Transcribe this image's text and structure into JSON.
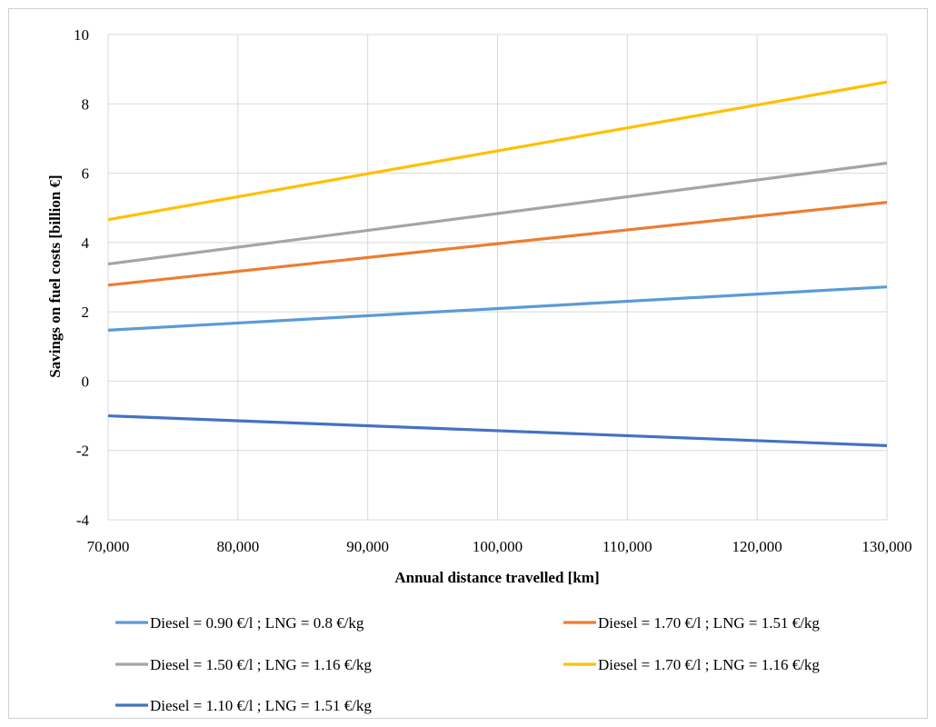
{
  "chart_data": {
    "type": "line",
    "title": "",
    "xlabel": "Annual distance travelled [km]",
    "ylabel": "Savings on fuel costs [billion €]",
    "xlim": [
      70000,
      130000
    ],
    "ylim": [
      -4,
      10
    ],
    "x_ticks": [
      70000,
      80000,
      90000,
      100000,
      110000,
      120000,
      130000
    ],
    "x_tick_labels": [
      "70,000",
      "80,000",
      "90,000",
      "100,000",
      "110,000",
      "120,000",
      "130,000"
    ],
    "y_ticks": [
      -4,
      -2,
      0,
      2,
      4,
      6,
      8,
      10
    ],
    "y_tick_labels": [
      "-4",
      "-2",
      "0",
      "2",
      "4",
      "6",
      "8",
      "10"
    ],
    "grid": true,
    "legend_position": "bottom",
    "x": [
      70000,
      130000
    ],
    "series": [
      {
        "name": "Diesel = 0.90 €/l ; LNG = 0.8 €/kg",
        "color": "#5b9bd5",
        "values": [
          1.47,
          2.72
        ]
      },
      {
        "name": "Diesel = 1.70 €/l ; LNG = 1.51 €/kg",
        "color": "#ed7d31",
        "values": [
          2.77,
          5.16
        ]
      },
      {
        "name": "Diesel = 1.50 €/l ; LNG = 1.16 €/kg",
        "color": "#a5a5a5",
        "values": [
          3.38,
          6.29
        ]
      },
      {
        "name": "Diesel = 1.70 €/l ; LNG = 1.16 €/kg",
        "color": "#ffc000",
        "values": [
          4.66,
          8.63
        ]
      },
      {
        "name": "Diesel = 1.10 €/l ; LNG = 1.51 €/kg",
        "color": "#4472c4",
        "values": [
          -1.0,
          -1.86
        ]
      }
    ]
  }
}
